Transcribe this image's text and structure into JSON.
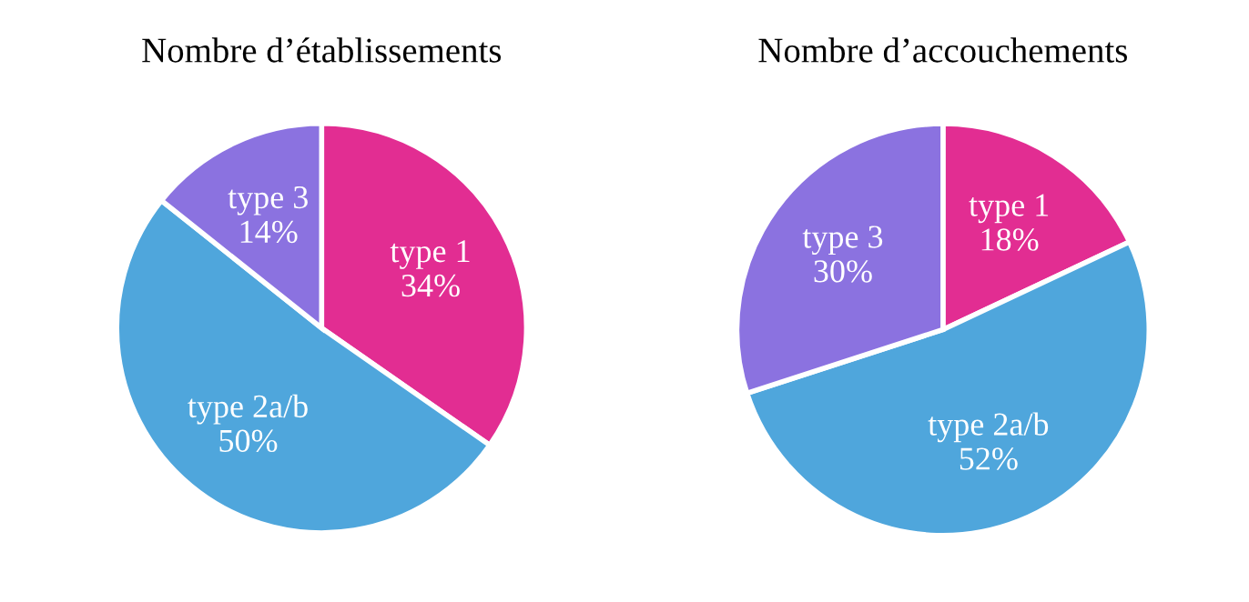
{
  "chart_data": [
    {
      "type": "pie",
      "title": "Nombre d’établissements",
      "categories": [
        "type 1",
        "type 2a/b",
        "type 3"
      ],
      "values": [
        34,
        50,
        14
      ],
      "value_labels": [
        "34%",
        "50%",
        "14%"
      ],
      "colors": [
        "#e22d92",
        "#4fa6dc",
        "#8b72e0"
      ]
    },
    {
      "type": "pie",
      "title": "Nombre d’accouchements",
      "categories": [
        "type 1",
        "type 2a/b",
        "type 3"
      ],
      "values": [
        18,
        52,
        30
      ],
      "value_labels": [
        "18%",
        "52%",
        "30%"
      ],
      "colors": [
        "#e22d92",
        "#4fa6dc",
        "#8b72e0"
      ]
    }
  ]
}
